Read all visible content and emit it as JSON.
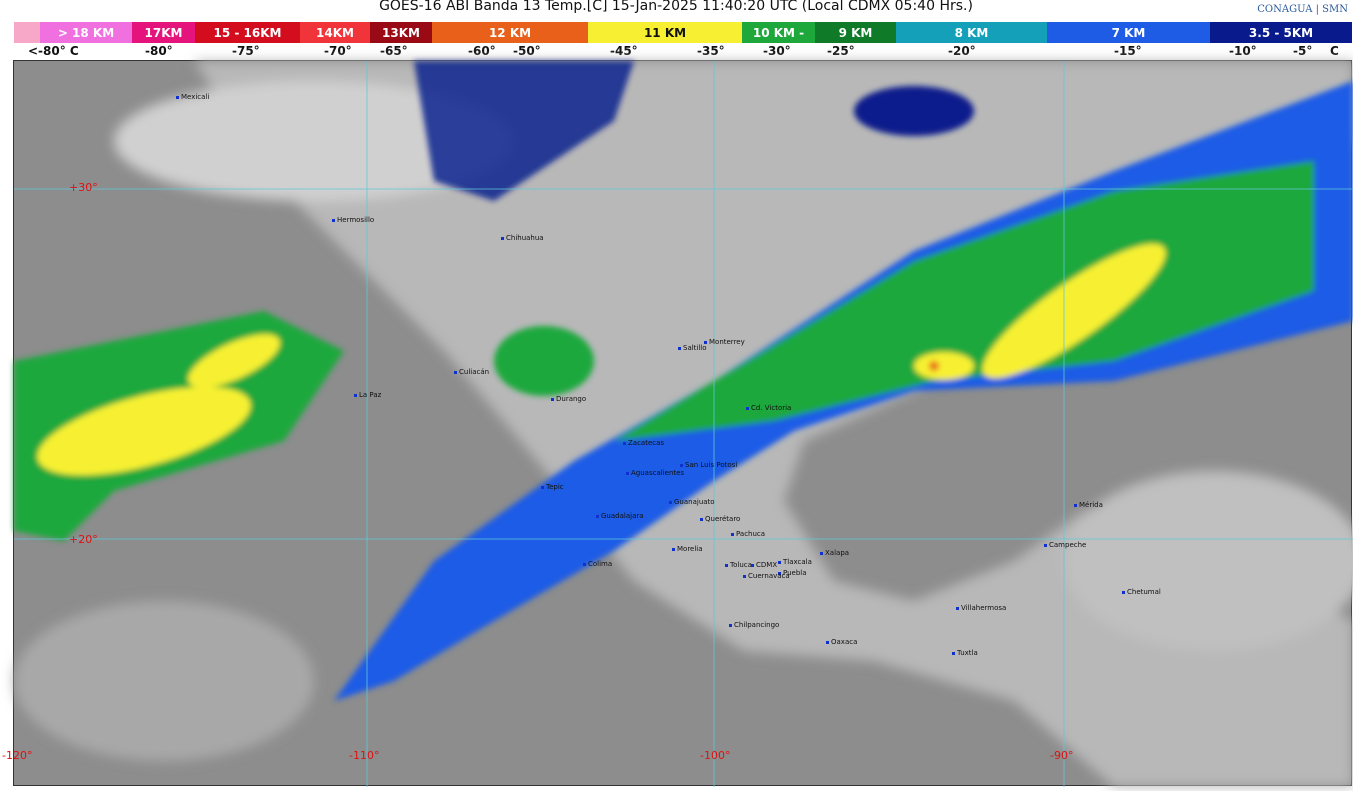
{
  "title": "GOES-16 ABI Banda 13 Temp.[C] 15-Jan-2025 11:40:20 UTC (Local CDMX  05:40 Hrs.)",
  "logos": {
    "conagua": "CONAGUA",
    "smn": "SMN"
  },
  "legend": [
    {
      "label": "",
      "color": "#f7a8c8"
    },
    {
      "label": "> 18 KM",
      "color": "#f070e0"
    },
    {
      "label": "17KM",
      "color": "#e4147c"
    },
    {
      "label": "15 - 16KM",
      "color": "#d40d1e"
    },
    {
      "label": "14KM",
      "color": "#f0343a"
    },
    {
      "label": "13KM",
      "color": "#9a0a14"
    },
    {
      "label": "12 KM",
      "color": "#e8601a"
    },
    {
      "label": "11 KM",
      "color": "#f7f032"
    },
    {
      "label": "10 KM -",
      "color": "#1ea83c"
    },
    {
      "label": "9 KM",
      "color": "#0f7a28"
    },
    {
      "label": "8 KM",
      "color": "#14a0b8"
    },
    {
      "label": "7 KM",
      "color": "#1e5ce6"
    },
    {
      "label": "3.5 - 5KM",
      "color": "#081a8c"
    }
  ],
  "temps": [
    "<-80° C",
    "-80°",
    "-75°",
    "-70°",
    "-65°",
    "-60°",
    "-50°",
    "-45°",
    "-35°",
    "-30°",
    "-25°",
    "-20°",
    "-15°",
    "-10°",
    "-5°",
    "C"
  ],
  "coords": [
    "+30°",
    "+20°",
    "-120°",
    "-110°",
    "-100°",
    "-90°"
  ],
  "cities": [
    "Mexicali",
    "Hermosillo",
    "Chihuahua",
    "La Paz",
    "Culiacán",
    "Durango",
    "Saltillo",
    "Monterrey",
    "Cd. Victoria",
    "Zacatecas",
    "San Luis Potosí",
    "Aguascalientes",
    "Tepic",
    "Guanajuato",
    "Guadalajara",
    "Querétaro",
    "Pachuca",
    "Colima",
    "Morelia",
    "Toluca",
    "CDMX",
    "Tlaxcala",
    "Xalapa",
    "Puebla",
    "Cuernavaca",
    "Chilpancingo",
    "Oaxaca",
    "Villahermosa",
    "Tuxtla",
    "Mérida",
    "Campeche",
    "Chetumal"
  ]
}
